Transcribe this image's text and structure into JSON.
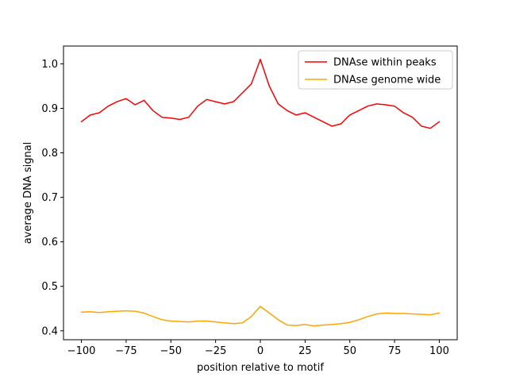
{
  "chart_data": {
    "type": "line",
    "title": "",
    "xlabel": "position relative to motif",
    "ylabel": "average DNA signal",
    "xlim": [
      -110,
      110
    ],
    "ylim": [
      0.38,
      1.04
    ],
    "xticks": [
      -100,
      -75,
      -50,
      -25,
      0,
      25,
      50,
      75,
      100
    ],
    "xtick_labels": [
      "−100",
      "−75",
      "−50",
      "−25",
      "0",
      "25",
      "50",
      "75",
      "100"
    ],
    "yticks": [
      0.4,
      0.5,
      0.6,
      0.7,
      0.8,
      0.9,
      1.0
    ],
    "ytick_labels": [
      "0.4",
      "0.5",
      "0.6",
      "0.7",
      "0.8",
      "0.9",
      "1.0"
    ],
    "grid": false,
    "legend_position": "top-right",
    "series": [
      {
        "name": "DNAse within peaks",
        "color": "#ff0000",
        "x": [
          -100,
          -95,
          -90,
          -85,
          -80,
          -75,
          -70,
          -65,
          -60,
          -55,
          -50,
          -45,
          -40,
          -35,
          -30,
          -25,
          -20,
          -15,
          -10,
          -5,
          0,
          5,
          10,
          15,
          20,
          25,
          30,
          35,
          40,
          45,
          50,
          55,
          60,
          65,
          70,
          75,
          80,
          85,
          90,
          95,
          100
        ],
        "y": [
          0.87,
          0.885,
          0.89,
          0.905,
          0.915,
          0.922,
          0.908,
          0.918,
          0.895,
          0.88,
          0.878,
          0.875,
          0.88,
          0.905,
          0.92,
          0.915,
          0.91,
          0.915,
          0.935,
          0.955,
          1.01,
          0.95,
          0.91,
          0.895,
          0.885,
          0.89,
          0.88,
          0.87,
          0.86,
          0.865,
          0.885,
          0.895,
          0.905,
          0.91,
          0.908,
          0.905,
          0.89,
          0.88,
          0.86,
          0.855,
          0.87
        ]
      },
      {
        "name": "DNAse genome wide",
        "color": "#ffa500",
        "x": [
          -100,
          -95,
          -90,
          -85,
          -80,
          -75,
          -70,
          -65,
          -60,
          -55,
          -50,
          -45,
          -40,
          -35,
          -30,
          -25,
          -20,
          -15,
          -10,
          -5,
          0,
          5,
          10,
          15,
          20,
          25,
          30,
          35,
          40,
          45,
          50,
          55,
          60,
          65,
          70,
          75,
          80,
          85,
          90,
          95,
          100
        ],
        "y": [
          0.442,
          0.443,
          0.441,
          0.443,
          0.444,
          0.445,
          0.444,
          0.44,
          0.432,
          0.425,
          0.422,
          0.421,
          0.42,
          0.422,
          0.422,
          0.42,
          0.418,
          0.416,
          0.418,
          0.432,
          0.455,
          0.44,
          0.425,
          0.413,
          0.412,
          0.414,
          0.411,
          0.413,
          0.414,
          0.416,
          0.419,
          0.425,
          0.432,
          0.438,
          0.44,
          0.439,
          0.439,
          0.438,
          0.437,
          0.436,
          0.44
        ]
      }
    ]
  }
}
